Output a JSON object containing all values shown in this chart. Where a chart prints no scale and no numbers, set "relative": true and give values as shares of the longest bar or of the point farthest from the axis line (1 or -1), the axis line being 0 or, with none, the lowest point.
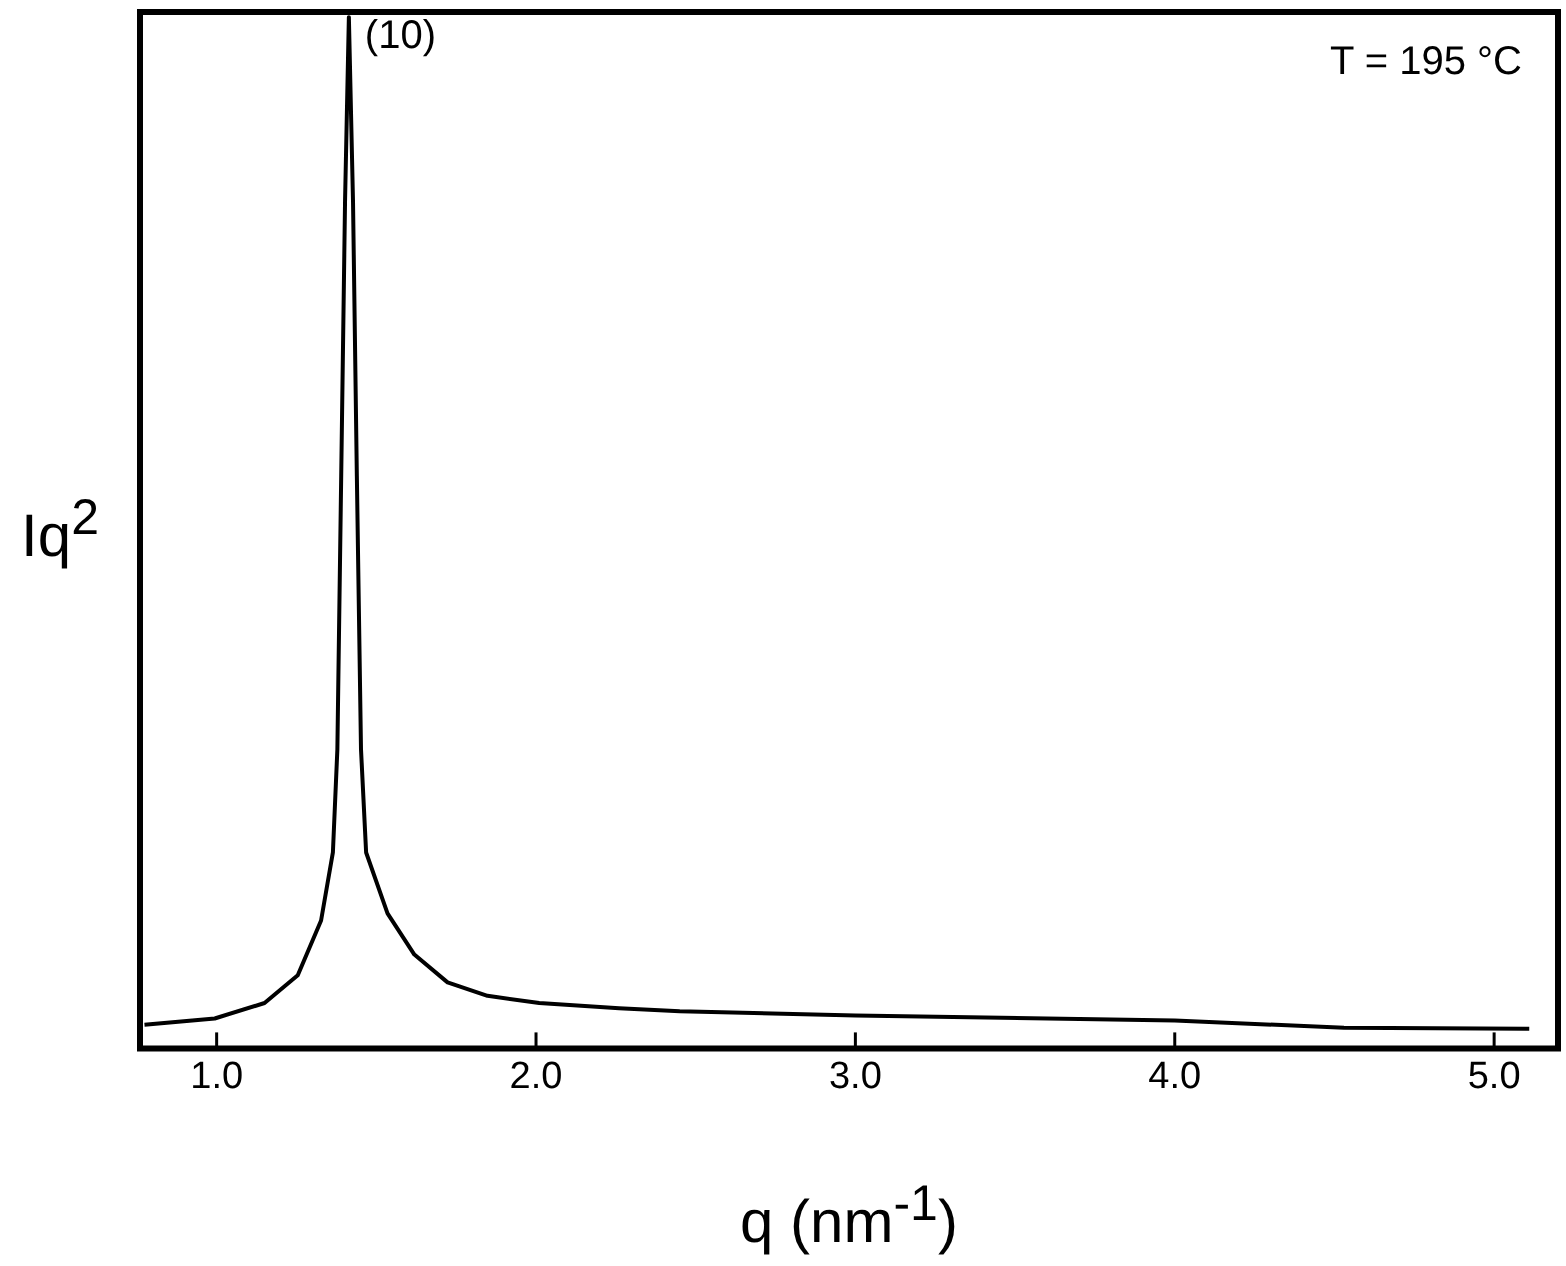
{
  "chart_data": {
    "type": "line",
    "relative": true,
    "xlabel": "q (nm$^{-1}$)",
    "ylabel": "Iq$^{2}$",
    "x": [
      0.774,
      0.994,
      1.15,
      1.254,
      1.327,
      1.364,
      1.378,
      1.39,
      1.402,
      1.414,
      1.427,
      1.439,
      1.452,
      1.468,
      1.535,
      1.619,
      1.723,
      1.848,
      2.01,
      2.26,
      2.45,
      3.0,
      4.0,
      4.53,
      5.11
    ],
    "series": [
      {
        "color": "#000000",
        "values": [
          0.023,
          0.029,
          0.044,
          0.071,
          0.124,
          0.19,
          0.29,
          0.555,
          0.821,
          1.0,
          0.821,
          0.555,
          0.29,
          0.19,
          0.131,
          0.091,
          0.064,
          0.051,
          0.044,
          0.039,
          0.036,
          0.032,
          0.027,
          0.02,
          0.019
        ]
      }
    ],
    "xlim": [
      0.76,
      5.2
    ],
    "xticks": [
      {
        "value": 1,
        "label": "1.0"
      },
      {
        "value": 2,
        "label": "2.0"
      },
      {
        "value": 3,
        "label": "3.0"
      },
      {
        "value": 4,
        "label": "4.0"
      },
      {
        "value": 5,
        "label": "5.0"
      }
    ],
    "marker": "none",
    "line_style": "solid",
    "grid": false,
    "legend": false,
    "annotations": [
      {
        "text": "(10)",
        "x": 1.414,
        "y": 1
      },
      "T = 195 °C"
    ]
  }
}
